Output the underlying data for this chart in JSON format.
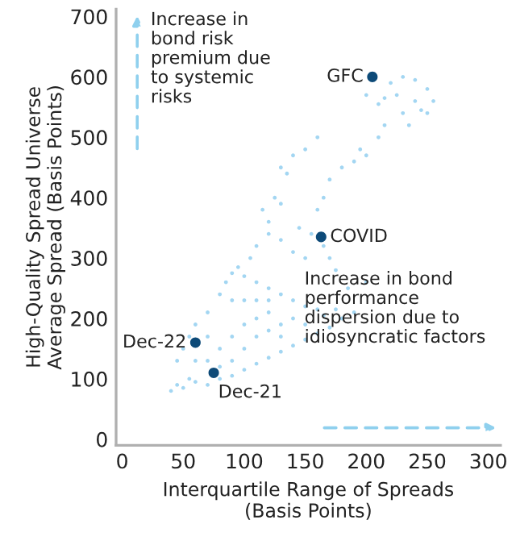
{
  "chart_data": {
    "type": "scatter",
    "xlabel": "Interquartile Range of Spreads\n(Basis Points)",
    "ylabel": "High-Quality Spread Universe\nAverage Spread (Basis Points)",
    "xlim": [
      -5,
      310
    ],
    "ylim": [
      -10,
      712
    ],
    "xticks": [
      0,
      50,
      100,
      150,
      200,
      250,
      300
    ],
    "yticks": [
      0,
      100,
      200,
      300,
      400,
      500,
      600,
      700
    ],
    "grid": false,
    "marker": "circle",
    "series": [
      {
        "color": "#a3d6f2",
        "x": [
          40,
          45,
          50,
          55,
          60,
          70,
          80,
          90,
          100,
          110,
          120,
          130,
          140,
          150,
          160,
          170,
          180,
          190,
          175,
          165,
          45,
          50,
          55,
          60,
          70,
          80,
          85,
          90,
          95,
          100,
          110,
          120,
          130,
          140,
          150,
          160,
          70,
          80,
          90,
          100,
          110,
          120,
          100,
          110,
          120,
          130,
          140,
          90,
          130,
          150,
          80,
          60,
          70,
          100,
          90,
          110,
          120,
          105,
          110,
          120,
          130,
          140,
          150,
          145,
          155,
          165,
          170,
          175,
          185,
          200,
          120,
          115,
          125,
          130,
          160,
          165,
          170,
          180,
          190,
          200,
          210,
          215,
          195,
          140,
          150,
          135,
          130,
          160,
          230,
          240,
          250,
          255,
          220,
          230,
          240,
          250,
          225,
          215,
          210,
          245,
          235,
          200
        ],
        "values": [
          80,
          90,
          85,
          100,
          95,
          90,
          100,
          105,
          115,
          125,
          135,
          145,
          155,
          165,
          175,
          185,
          200,
          210,
          215,
          205,
          130,
          150,
          170,
          190,
          210,
          240,
          260,
          275,
          285,
          270,
          260,
          250,
          240,
          230,
          220,
          215,
          130,
          150,
          170,
          190,
          200,
          210,
          150,
          170,
          180,
          190,
          200,
          130,
          170,
          190,
          120,
          130,
          170,
          230,
          230,
          230,
          230,
          300,
          320,
          340,
          330,
          310,
          300,
          350,
          340,
          320,
          300,
          280,
          250,
          260,
          360,
          380,
          400,
          390,
          380,
          400,
          430,
          450,
          460,
          470,
          500,
          520,
          480,
          470,
          480,
          440,
          450,
          500,
          540,
          560,
          540,
          560,
          590,
          600,
          595,
          580,
          570,
          565,
          555,
          545,
          520,
          570
        ]
      },
      {
        "color": "#0d4a78",
        "x": [
          205,
          163,
          60,
          75
        ],
        "values": [
          600,
          335,
          160,
          110
        ]
      }
    ],
    "annotations": [
      {
        "text": "GFC",
        "x": 205,
        "y": 600
      },
      {
        "text": "COVID",
        "x": 163,
        "y": 335
      },
      {
        "text": "Dec-22",
        "x": 60,
        "y": 160
      },
      {
        "text": "Dec-21",
        "x": 75,
        "y": 110
      },
      "Increase in\nbond risk\npremium due\nto systemic\nrisks",
      "Increase in bond\nperformance\ndispersion due to\nidiosyncratic factors"
    ]
  }
}
